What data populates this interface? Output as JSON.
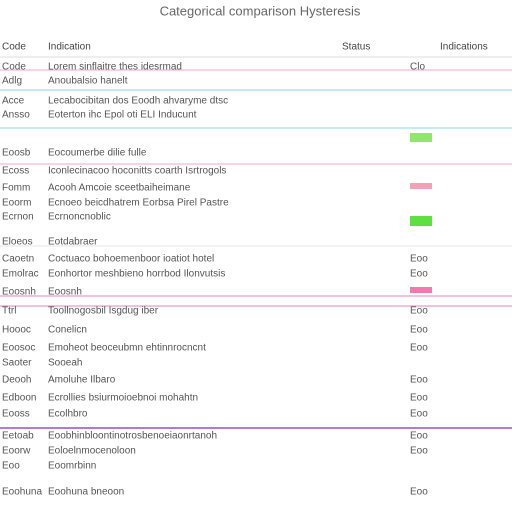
{
  "header": {
    "title": "Categorical comparison Hysteresis"
  },
  "table": {
    "columns": [
      "Code",
      "Indication",
      "Status",
      "Indications"
    ],
    "rows": [
      {
        "code": "Code",
        "text": "Lorem sinflaitre thes idesrmad",
        "tag": "Clo"
      },
      {
        "code": "Adlg",
        "text": "Anoubalsio hanelt"
      },
      {
        "code": "Acce",
        "text": "Lecabocibitan dos Eoodh ahvaryme dtsc"
      },
      {
        "code": "Ansso",
        "text": "Eoterton ihc Epol oti ELI Inducunt"
      },
      {
        "code": "Eoosb",
        "text": "Eocoumerbe dilie fulle"
      },
      {
        "code": "Ecoss",
        "text": "Iconlecinacoo hoconitts coarth Isrtrogols"
      },
      {
        "code": "Fomm",
        "text": "Acooh Amcoie sceetbaiheimane"
      },
      {
        "code": "Eoorm",
        "text": "Ecnoeo beicdhatrem Eorbsa Pirel Pastre"
      },
      {
        "code": "Ecrnon",
        "text": "Ecrnoncnoblic"
      },
      {
        "code": "Eloeos",
        "text": "Eotdabraer"
      },
      {
        "code": "Caoetn",
        "text": "Coctuaco bohoemenboor ioatiot hotel",
        "tag": "Eoo"
      },
      {
        "code": "Emolrac",
        "text": "Eonhortor meshbieno horrbod Ilonvutsis",
        "tag": "Eoo"
      },
      {
        "code": "Eoosnh",
        "text": "Eoosnh"
      },
      {
        "code": "Ttrl",
        "text": "Toollnogosbil Isgdug iber",
        "tag": "Eoo"
      },
      {
        "code": "Hoooc",
        "text": "Conelicn",
        "tag": "Eoo"
      },
      {
        "code": "Eoosoc",
        "text": "Emoheot beoceubmn ehtinnrocncnt",
        "tag": "Eoo"
      },
      {
        "code": "Saoter",
        "text": "Sooeah"
      },
      {
        "code": "Deooh",
        "text": "Amoluhe Ilbaro",
        "tag": "Eoo"
      },
      {
        "code": "Edboon",
        "text": "Ecrollies bsiurmoioebnoi mohahtn",
        "tag": "Eoo"
      },
      {
        "code": "Eooss",
        "text": "Ecolhbro",
        "tag": "Eoo"
      },
      {
        "code": "Eetoab",
        "text": "Eoobhinbloontinotrosbenoeiaonrtanoh",
        "tag": "Eoo"
      },
      {
        "code": "Eoorw",
        "text": "Eoloelnmocenoloon",
        "tag": "Eoo"
      },
      {
        "code": "Eoo",
        "text": "Eoomrbinn"
      },
      {
        "code": "Eoohuna",
        "text": "Eoohuna bneoon",
        "tag": "Eoo"
      }
    ]
  }
}
